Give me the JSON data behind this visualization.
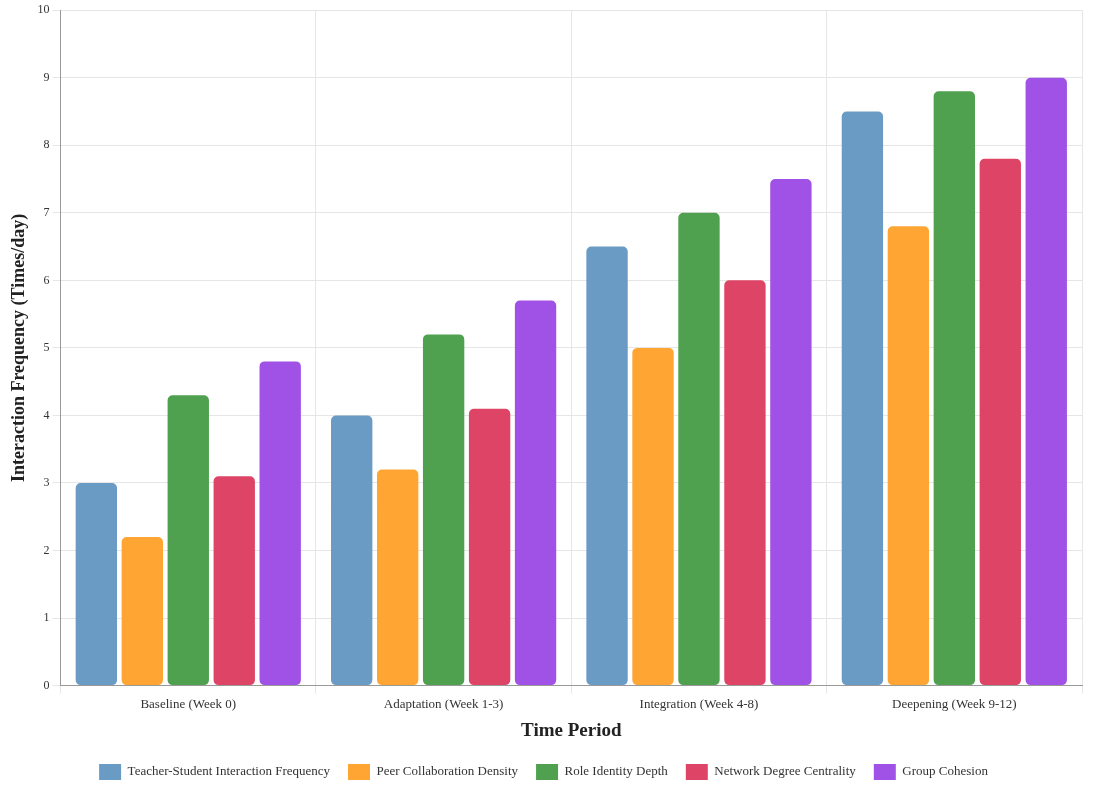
{
  "chart_data": {
    "type": "bar",
    "xlabel": "Time Period",
    "ylabel": "Interaction Frequency (Times/day)",
    "categories": [
      "Baseline (Week 0)",
      "Adaptation (Week 1-3)",
      "Integration (Week 4-8)",
      "Deepening (Week 9-12)"
    ],
    "series": [
      {
        "name": "Teacher-Student Interaction Frequency",
        "color": "#6a9bc4",
        "values": [
          3,
          4,
          6.5,
          8.5
        ]
      },
      {
        "name": "Peer Collaboration Density",
        "color": "#fea533",
        "values": [
          2.2,
          3.2,
          5,
          6.8
        ]
      },
      {
        "name": "Role Identity Depth",
        "color": "#4fa14f",
        "values": [
          4.3,
          5.2,
          7,
          8.8
        ]
      },
      {
        "name": "Network Degree Centrality",
        "color": "#de4465",
        "values": [
          3.1,
          4.1,
          6,
          7.8
        ]
      },
      {
        "name": "Group Cohesion",
        "color": "#a152e6",
        "values": [
          4.8,
          5.7,
          7.5,
          9
        ]
      }
    ],
    "ylim": [
      0,
      10
    ],
    "yticks": [
      0,
      1,
      2,
      3,
      4,
      5,
      6,
      7,
      8,
      9,
      10
    ],
    "grid": true,
    "legend": "bottom"
  }
}
